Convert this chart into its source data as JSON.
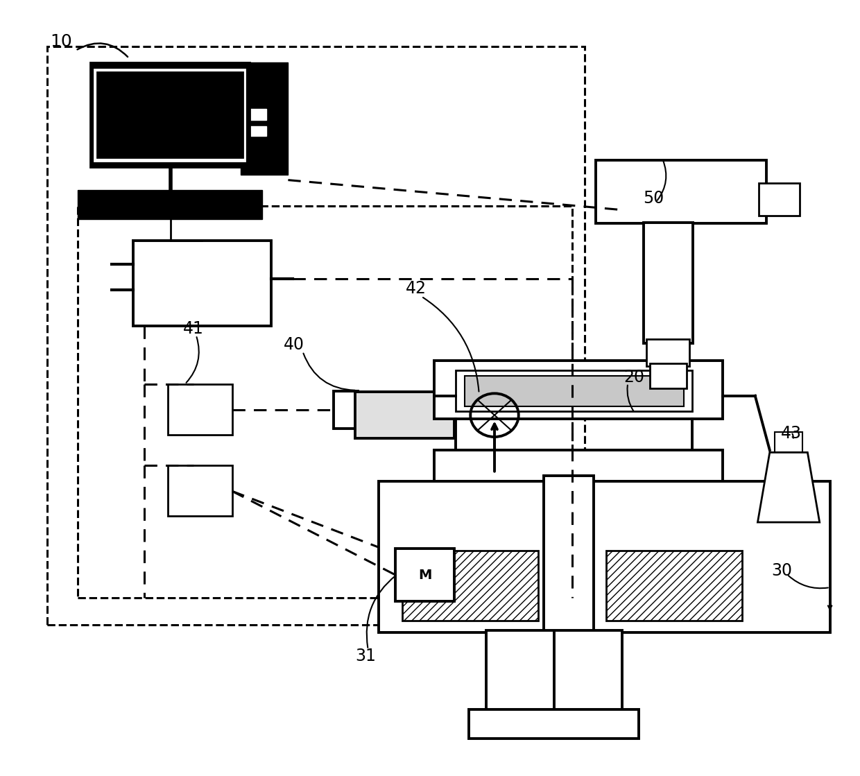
{
  "bg_color": "#ffffff",
  "line_color": "#000000",
  "figsize": [
    12.4,
    11.19
  ],
  "dpi": 100
}
